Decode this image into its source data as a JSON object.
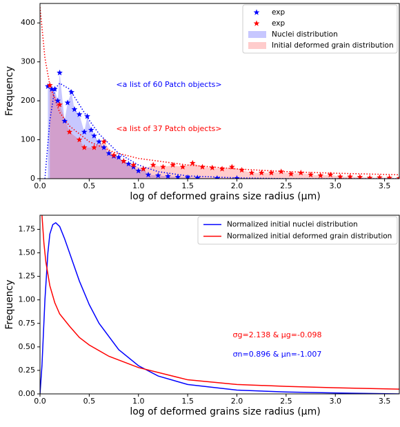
{
  "chart_data": [
    {
      "type": "line",
      "xlabel": "log of deformed grains size radius (µm)",
      "ylabel": "Frequency",
      "xlim": [
        0,
        3.65
      ],
      "ylim": [
        0,
        450
      ],
      "xticks": [
        {
          "value": 0,
          "label": "0.0"
        },
        0.5,
        {
          "value": 1,
          "label": "1.0"
        },
        1.5,
        {
          "value": 2,
          "label": "2.0"
        },
        2.5,
        {
          "value": 3,
          "label": "3.0"
        },
        3.5
      ],
      "yticks": [
        0,
        100,
        200,
        300,
        400
      ],
      "legend": "upper right",
      "annotations": [
        {
          "text": "<a list of 60 Patch objects>",
          "color": "#0000ff"
        },
        {
          "text": "<a list of 37 Patch objects>",
          "color": "#ff0000"
        }
      ],
      "series": [
        {
          "name": "exp",
          "type": "scatter",
          "marker": "star",
          "color": "#0000ff",
          "x": [
            0.08,
            0.12,
            0.15,
            0.18,
            0.2,
            0.25,
            0.28,
            0.32,
            0.35,
            0.4,
            0.45,
            0.48,
            0.52,
            0.55,
            0.6,
            0.65,
            0.7,
            0.75,
            0.8,
            0.85,
            0.9,
            0.95,
            1.0,
            1.05,
            1.1,
            1.2,
            1.3,
            1.4,
            1.5,
            1.6,
            1.8,
            2.0
          ],
          "values": [
            237,
            230,
            230,
            200,
            272,
            148,
            195,
            222,
            178,
            165,
            120,
            160,
            125,
            110,
            95,
            80,
            65,
            58,
            55,
            45,
            38,
            30,
            20,
            25,
            10,
            8,
            6,
            4,
            3,
            2,
            1,
            1
          ]
        },
        {
          "name": "exp",
          "type": "scatter",
          "marker": "star",
          "color": "#ff0000",
          "x": [
            0.1,
            0.2,
            0.3,
            0.4,
            0.45,
            0.55,
            0.65,
            0.75,
            0.85,
            0.95,
            1.05,
            1.15,
            1.25,
            1.35,
            1.45,
            1.55,
            1.65,
            1.75,
            1.85,
            1.95,
            2.05,
            2.15,
            2.25,
            2.35,
            2.45,
            2.55,
            2.65,
            2.75,
            2.85,
            2.95,
            3.05,
            3.15,
            3.25,
            3.35,
            3.45,
            3.55,
            3.65
          ],
          "values": [
            240,
            190,
            120,
            100,
            80,
            80,
            95,
            60,
            45,
            35,
            25,
            35,
            30,
            35,
            30,
            40,
            30,
            28,
            25,
            30,
            22,
            15,
            15,
            15,
            18,
            12,
            15,
            10,
            8,
            10,
            5,
            5,
            4,
            2,
            3,
            2,
            1
          ]
        },
        {
          "name": "Nuclei distribution",
          "type": "area",
          "color": "#0000ff",
          "alpha": 0.22,
          "x": [
            0.08,
            0.12,
            0.15,
            0.18,
            0.2,
            0.25,
            0.28,
            0.32,
            0.35,
            0.4,
            0.45,
            0.48,
            0.52,
            0.55,
            0.6,
            0.65,
            0.7,
            0.75,
            0.8,
            0.85,
            0.9,
            0.95,
            1.0,
            1.05,
            1.1,
            1.2,
            1.3,
            1.4,
            1.5,
            1.6,
            1.8,
            2.0
          ],
          "values": [
            237,
            230,
            230,
            200,
            272,
            148,
            195,
            222,
            178,
            165,
            120,
            160,
            125,
            110,
            95,
            80,
            65,
            58,
            55,
            45,
            38,
            30,
            20,
            25,
            10,
            8,
            6,
            4,
            3,
            2,
            1,
            1
          ]
        },
        {
          "name": "Initial deformed grain distribution",
          "type": "area",
          "color": "#ff0000",
          "alpha": 0.2,
          "x": [
            0.1,
            0.2,
            0.3,
            0.4,
            0.45,
            0.55,
            0.65,
            0.75,
            0.85,
            0.95,
            1.05,
            1.15,
            1.25,
            1.35,
            1.45,
            1.55,
            1.65,
            1.75,
            1.85,
            1.95,
            2.05,
            2.15,
            2.25,
            2.35,
            2.45,
            2.55,
            2.65,
            2.75,
            2.85,
            2.95,
            3.05,
            3.15,
            3.25,
            3.35,
            3.45,
            3.55,
            3.65
          ],
          "values": [
            240,
            190,
            120,
            100,
            80,
            80,
            95,
            60,
            45,
            35,
            25,
            35,
            30,
            35,
            30,
            40,
            30,
            28,
            25,
            30,
            22,
            15,
            15,
            15,
            18,
            12,
            15,
            10,
            8,
            10,
            5,
            5,
            4,
            2,
            3,
            2,
            1
          ]
        },
        {
          "type": "line",
          "color": "#0000ff",
          "linestyle": "dotted",
          "x": [
            0.05,
            0.1,
            0.15,
            0.2,
            0.3,
            0.4,
            0.5,
            0.6,
            0.8,
            1.0,
            1.2,
            1.5,
            2.0,
            2.5,
            3.0,
            3.65
          ],
          "values": [
            0,
            150,
            230,
            245,
            230,
            190,
            150,
            115,
            65,
            35,
            18,
            7,
            2,
            0,
            0,
            0
          ]
        },
        {
          "type": "line",
          "color": "#ff0000",
          "linestyle": "dotted",
          "x": [
            0,
            0.05,
            0.1,
            0.2,
            0.3,
            0.5,
            0.75,
            1.0,
            1.5,
            2.0,
            2.5,
            3.0,
            3.65
          ],
          "values": [
            440,
            310,
            240,
            170,
            135,
            95,
            68,
            52,
            35,
            25,
            18,
            14,
            10
          ]
        }
      ]
    },
    {
      "type": "line",
      "xlabel": "log of deformed grains size radius (µm)",
      "ylabel": "Frequency",
      "xlim": [
        0,
        3.65
      ],
      "ylim": [
        0,
        1.9
      ],
      "xticks": [
        {
          "value": 0,
          "label": "0.0"
        },
        0.5,
        {
          "value": 1,
          "label": "1.0"
        },
        1.5,
        {
          "value": 2,
          "label": "2.0"
        },
        2.5,
        {
          "value": 3,
          "label": "3.0"
        },
        3.5
      ],
      "yticks": [
        {
          "value": 0,
          "label": "0.00"
        },
        0.25,
        {
          "value": 0.5,
          "label": "0.50"
        },
        0.75,
        {
          "value": 1,
          "label": "1.00"
        },
        1.25,
        {
          "value": 1.5,
          "label": "1.50"
        },
        1.75
      ],
      "legend": "upper right",
      "annotations": [
        {
          "text": "σg=2.138 & μg=-0.098",
          "color": "#ff0000"
        },
        {
          "text": "σn=0.896 & μn=-1.007",
          "color": "#0000ff"
        }
      ],
      "series": [
        {
          "name": "Normalized initial nuclei distribution",
          "type": "line",
          "color": "#0000ff",
          "linestyle": "solid",
          "x": [
            0,
            0.02,
            0.05,
            0.08,
            0.1,
            0.13,
            0.16,
            0.2,
            0.25,
            0.3,
            0.4,
            0.5,
            0.6,
            0.8,
            1.0,
            1.2,
            1.5,
            2.0,
            2.5,
            3.0,
            3.65
          ],
          "values": [
            0,
            0.3,
            1.0,
            1.5,
            1.7,
            1.8,
            1.82,
            1.78,
            1.65,
            1.5,
            1.2,
            0.95,
            0.75,
            0.47,
            0.3,
            0.19,
            0.1,
            0.04,
            0.02,
            0.01,
            0
          ]
        },
        {
          "name": "Normalized initial deformed grain distribution",
          "type": "line",
          "color": "#ff0000",
          "linestyle": "solid",
          "x": [
            0.02,
            0.04,
            0.06,
            0.1,
            0.15,
            0.2,
            0.3,
            0.4,
            0.5,
            0.7,
            1.0,
            1.5,
            2.0,
            2.5,
            3.0,
            3.65
          ],
          "values": [
            1.9,
            1.6,
            1.4,
            1.15,
            0.97,
            0.85,
            0.72,
            0.6,
            0.52,
            0.4,
            0.28,
            0.15,
            0.1,
            0.08,
            0.065,
            0.05
          ]
        }
      ]
    }
  ]
}
